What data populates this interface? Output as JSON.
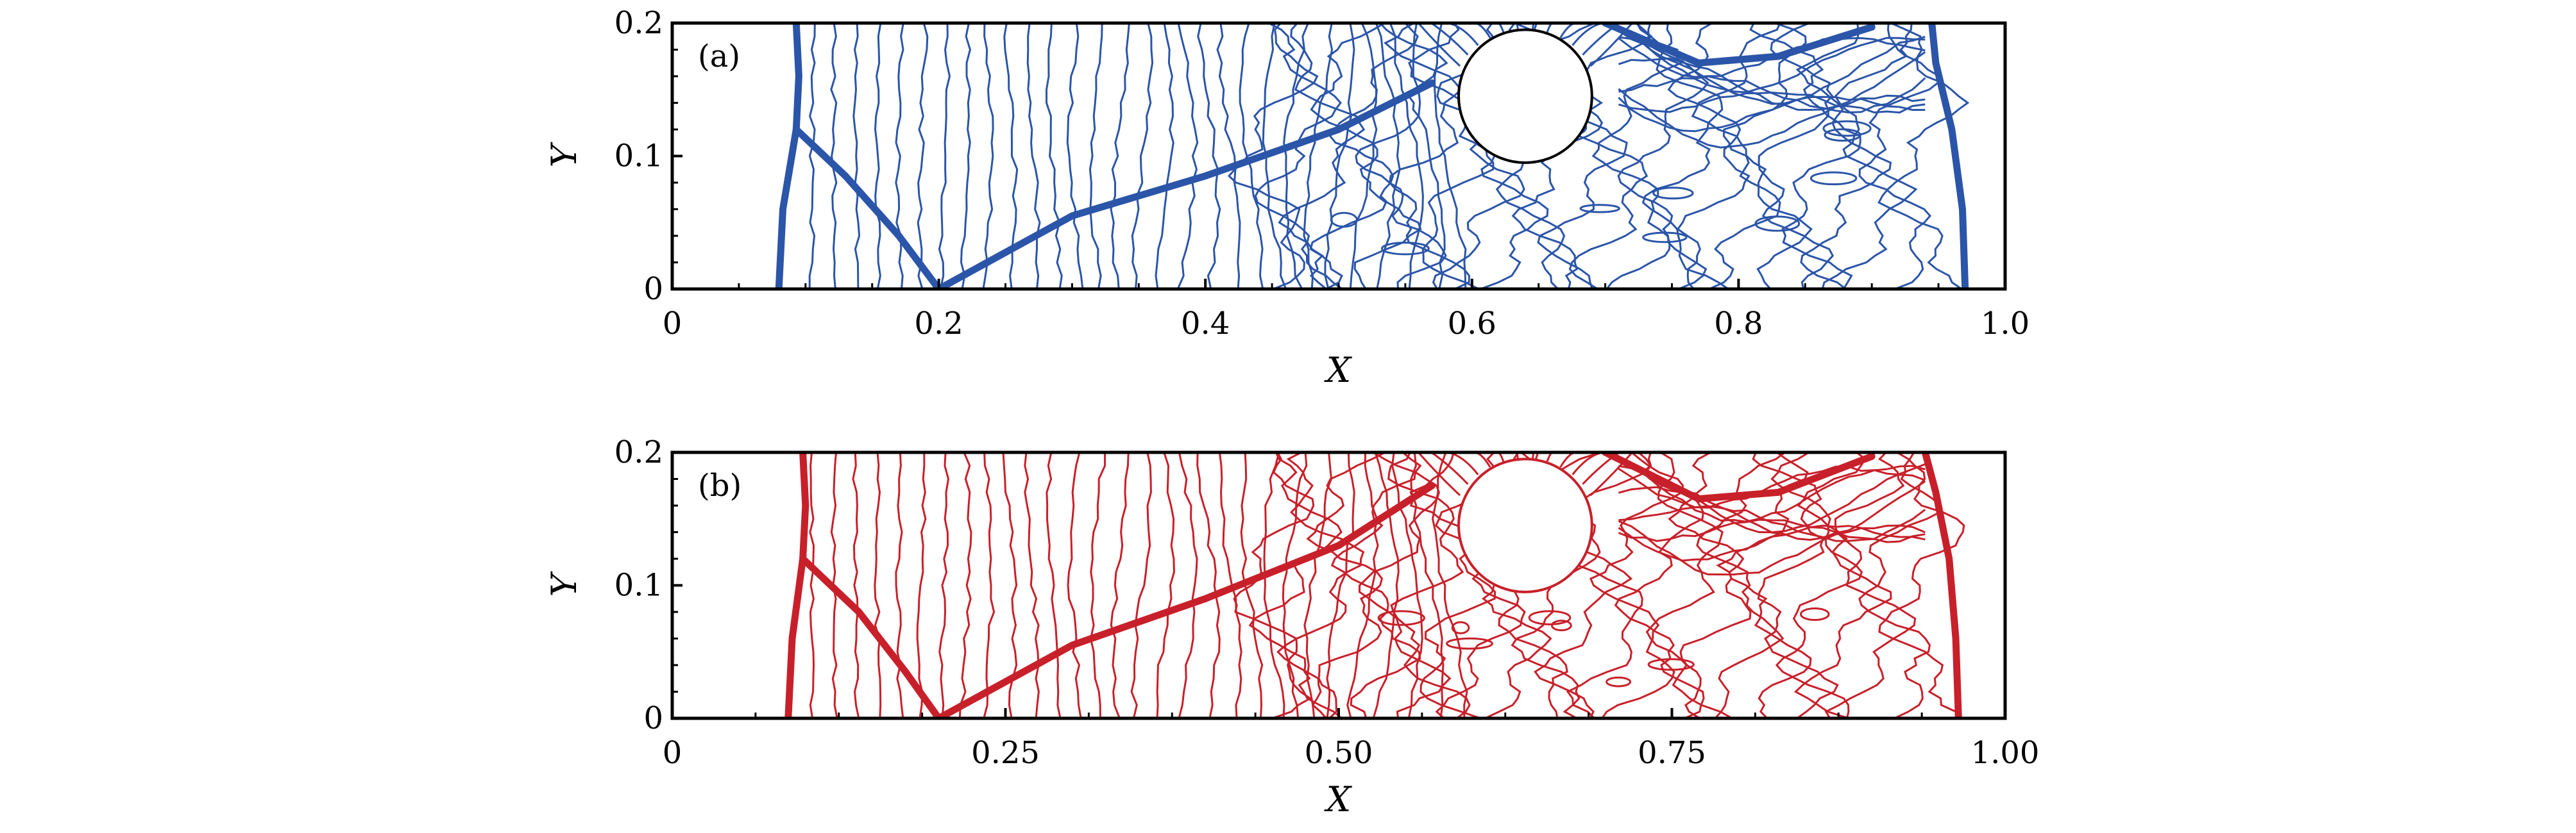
{
  "colors": {
    "panel_a": "#2b55a8",
    "panel_b": "#c8202a",
    "axis": "#000000",
    "background": "#ffffff"
  },
  "chart_data": [
    {
      "type": "contour",
      "panel_label": "(a)",
      "xlabel": "X",
      "ylabel": "Y",
      "xlim": [
        0,
        1.0
      ],
      "ylim": [
        0,
        0.2
      ],
      "x_ticks": [
        "0",
        "0.2",
        "0.4",
        "0.6",
        "0.8",
        "1.0"
      ],
      "x_tick_values": [
        0,
        0.2,
        0.4,
        0.6,
        0.8,
        1.0
      ],
      "y_ticks": [
        "0",
        "0.1",
        "0.2"
      ],
      "y_tick_values": [
        0,
        0.1,
        0.2
      ],
      "line_color": "#2b55a8",
      "obstacle": {
        "shape": "circle",
        "cx": 0.64,
        "cy": 0.145,
        "r": 0.05
      },
      "shock_fronts": [
        [
          [
            0.08,
            0.0
          ],
          [
            0.083,
            0.06
          ],
          [
            0.093,
            0.12
          ],
          [
            0.095,
            0.16
          ],
          [
            0.093,
            0.2
          ]
        ],
        [
          [
            0.093,
            0.12
          ],
          [
            0.13,
            0.085
          ],
          [
            0.17,
            0.04
          ],
          [
            0.2,
            0.0
          ]
        ],
        [
          [
            0.2,
            0.0
          ],
          [
            0.3,
            0.055
          ],
          [
            0.4,
            0.085
          ],
          [
            0.5,
            0.12
          ],
          [
            0.57,
            0.155
          ]
        ],
        [
          [
            0.97,
            0.0
          ],
          [
            0.968,
            0.06
          ],
          [
            0.96,
            0.12
          ],
          [
            0.948,
            0.17
          ],
          [
            0.945,
            0.2
          ]
        ],
        [
          [
            0.7,
            0.2
          ],
          [
            0.77,
            0.17
          ],
          [
            0.83,
            0.175
          ],
          [
            0.9,
            0.197
          ]
        ]
      ]
    },
    {
      "type": "contour",
      "panel_label": "(b)",
      "xlabel": "X",
      "ylabel": "Y",
      "xlim": [
        0,
        1.0
      ],
      "ylim": [
        0,
        0.2
      ],
      "x_ticks": [
        "0",
        "0.25",
        "0.50",
        "0.75",
        "1.00"
      ],
      "x_tick_values": [
        0,
        0.25,
        0.5,
        0.75,
        1.0
      ],
      "y_ticks": [
        "0",
        "0.1",
        "0.2"
      ],
      "y_tick_values": [
        0,
        0.1,
        0.2
      ],
      "line_color": "#c8202a",
      "obstacle": {
        "shape": "circle",
        "cx": 0.64,
        "cy": 0.145,
        "r": 0.05
      },
      "shock_fronts": [
        [
          [
            0.087,
            0.0
          ],
          [
            0.09,
            0.06
          ],
          [
            0.098,
            0.12
          ],
          [
            0.1,
            0.16
          ],
          [
            0.098,
            0.2
          ]
        ],
        [
          [
            0.098,
            0.12
          ],
          [
            0.14,
            0.08
          ],
          [
            0.175,
            0.035
          ],
          [
            0.2,
            0.0
          ]
        ],
        [
          [
            0.2,
            0.0
          ],
          [
            0.3,
            0.055
          ],
          [
            0.4,
            0.09
          ],
          [
            0.5,
            0.13
          ],
          [
            0.57,
            0.175
          ]
        ],
        [
          [
            0.965,
            0.0
          ],
          [
            0.963,
            0.06
          ],
          [
            0.958,
            0.12
          ],
          [
            0.948,
            0.17
          ],
          [
            0.94,
            0.2
          ]
        ],
        [
          [
            0.7,
            0.2
          ],
          [
            0.77,
            0.165
          ],
          [
            0.83,
            0.17
          ],
          [
            0.9,
            0.197
          ]
        ]
      ]
    }
  ]
}
